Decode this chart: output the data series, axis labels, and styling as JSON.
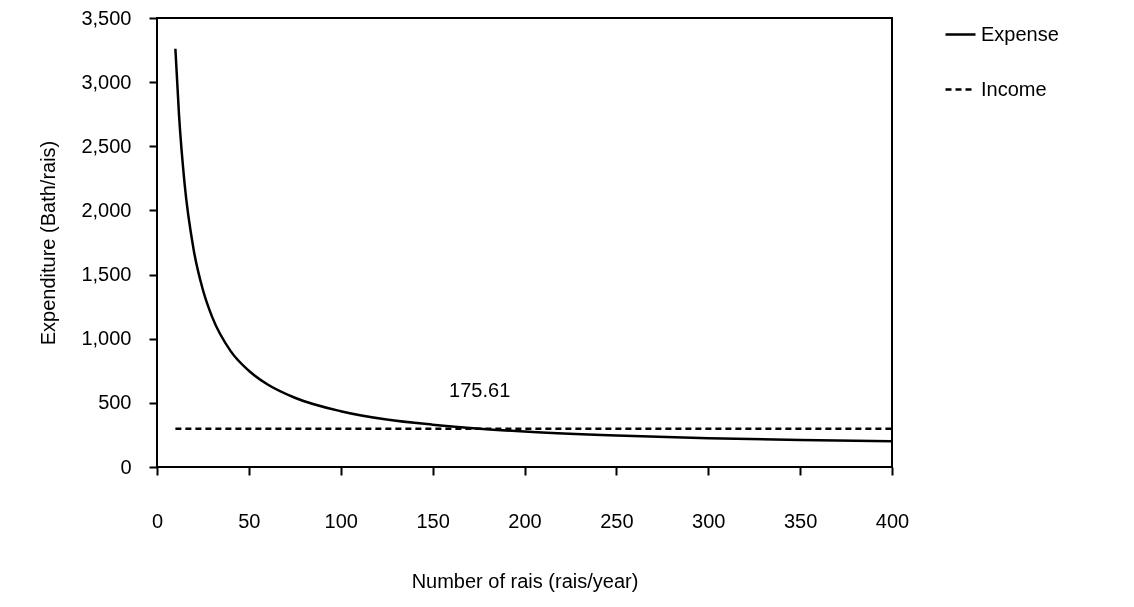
{
  "chart_data": {
    "type": "line",
    "xlabel": "Number of rais (rais/year)",
    "ylabel": "Expenditure (Bath/rais)",
    "xlim": [
      0,
      400
    ],
    "xticks": [
      0,
      50,
      100,
      150,
      200,
      250,
      300,
      350,
      400
    ],
    "ylim": [
      0,
      3500
    ],
    "yticks": [
      0,
      {
        "value": 500,
        "label": "500"
      },
      {
        "value": 1000,
        "label": "1,000"
      },
      {
        "value": 1500,
        "label": "1,500"
      },
      {
        "value": 2000,
        "label": "2,000"
      },
      {
        "value": 2500,
        "label": "2,500"
      },
      {
        "value": 3000,
        "label": "3,000"
      },
      {
        "value": 3500,
        "label": "3,500"
      }
    ],
    "grid": false,
    "legend": "right",
    "marker": "none",
    "series": [
      {
        "name": "Expense",
        "color": "#000000",
        "line_style": "solid",
        "x": [
          10,
          12,
          15,
          20,
          25,
          30,
          40,
          50,
          60,
          75,
          100,
          125,
          150,
          175.61,
          200,
          250,
          300,
          350,
          400
        ],
        "values": [
          3260,
          2740,
          2210,
          1690,
          1380,
          1170,
          905,
          750,
          645,
          540,
          435,
          370,
          330,
          299,
          277,
          246,
          225,
          210,
          200
        ]
      },
      {
        "name": "Income",
        "color": "#000000",
        "line_style": "dashed",
        "x": [
          10,
          400
        ],
        "values": [
          299,
          299
        ]
      }
    ],
    "annotations": [
      {
        "text": "175.61",
        "x": 175.61,
        "y": 299
      }
    ]
  }
}
